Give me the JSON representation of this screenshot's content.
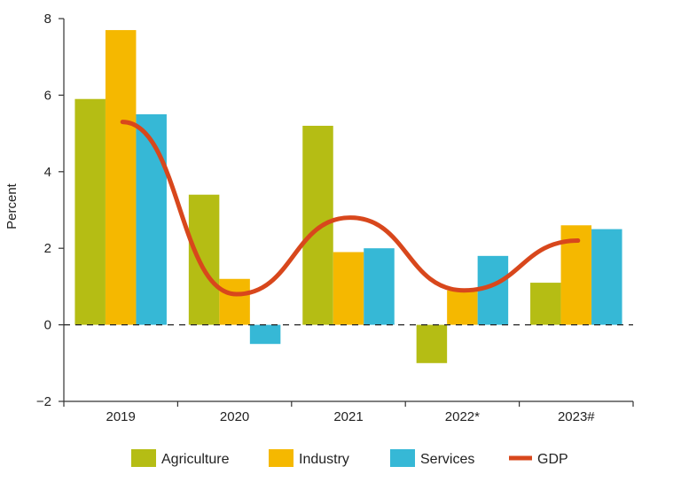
{
  "chart_data": {
    "type": "bar",
    "categories": [
      "2019",
      "2020",
      "2021",
      "2022*",
      "2023#"
    ],
    "series": [
      {
        "name": "Agriculture",
        "values": [
          5.9,
          3.4,
          5.2,
          -1.0,
          1.1
        ],
        "color": "#b5bd14"
      },
      {
        "name": "Industry",
        "values": [
          7.7,
          1.2,
          1.9,
          0.9,
          2.6
        ],
        "color": "#f5b800"
      },
      {
        "name": "Services",
        "values": [
          5.5,
          -0.5,
          2.0,
          1.8,
          2.5
        ],
        "color": "#36b8d6"
      }
    ],
    "line_series": {
      "name": "GDP",
      "values": [
        5.3,
        0.8,
        2.8,
        0.9,
        2.2
      ],
      "color": "#d8471c"
    },
    "ylabel": "Percent",
    "xlabel": "",
    "ylim": [
      -2,
      8
    ],
    "yticks": [
      -2,
      0,
      2,
      4,
      6,
      8
    ],
    "zero_line": "dashed",
    "grid": false,
    "legend_position": "bottom"
  }
}
